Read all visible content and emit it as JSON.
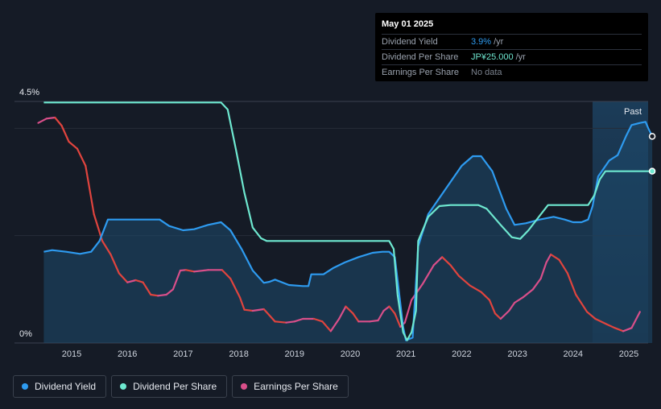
{
  "tooltip": {
    "date": "May 01 2025",
    "rows": [
      {
        "label": "Dividend Yield",
        "value": "3.9%",
        "unit": "/yr"
      },
      {
        "label": "Dividend Per Share",
        "value": "JP¥25.000",
        "unit": "/yr"
      },
      {
        "label": "Earnings Per Share",
        "value": "No data",
        "unit": ""
      }
    ]
  },
  "legend": [
    {
      "label": "Dividend Yield",
      "color": "#2e9bf0"
    },
    {
      "label": "Dividend Per Share",
      "color": "#6ee8d0"
    },
    {
      "label": "Earnings Per Share",
      "color": "#d94f8a"
    }
  ],
  "chart_data": {
    "type": "line",
    "y_ticks": [
      "4.5%",
      "0%"
    ],
    "ylim": [
      0,
      4.5
    ],
    "x_ticks": [
      "2015",
      "2016",
      "2017",
      "2018",
      "2019",
      "2020",
      "2021",
      "2022",
      "2023",
      "2024",
      "2025"
    ],
    "past_label": "Past",
    "colors": {
      "yield": "#2e9bf0",
      "dps": "#6ee8d0",
      "eps_up": "#d94f8a",
      "eps_down": "#e0443e"
    },
    "series": [
      {
        "name": "Dividend Yield",
        "key": "yield",
        "points": [
          [
            2014.5,
            1.7
          ],
          [
            2014.65,
            1.73
          ],
          [
            2014.9,
            1.7
          ],
          [
            2015.15,
            1.66
          ],
          [
            2015.35,
            1.7
          ],
          [
            2015.5,
            1.9
          ],
          [
            2015.65,
            2.3
          ],
          [
            2016.0,
            2.3
          ],
          [
            2016.3,
            2.3
          ],
          [
            2016.58,
            2.3
          ],
          [
            2016.75,
            2.18
          ],
          [
            2017.0,
            2.1
          ],
          [
            2017.2,
            2.12
          ],
          [
            2017.45,
            2.2
          ],
          [
            2017.68,
            2.25
          ],
          [
            2017.85,
            2.1
          ],
          [
            2018.05,
            1.75
          ],
          [
            2018.25,
            1.35
          ],
          [
            2018.45,
            1.12
          ],
          [
            2018.55,
            1.14
          ],
          [
            2018.65,
            1.18
          ],
          [
            2018.9,
            1.08
          ],
          [
            2019.15,
            1.06
          ],
          [
            2019.25,
            1.06
          ],
          [
            2019.3,
            1.28
          ],
          [
            2019.52,
            1.28
          ],
          [
            2019.7,
            1.4
          ],
          [
            2019.9,
            1.5
          ],
          [
            2020.15,
            1.6
          ],
          [
            2020.4,
            1.68
          ],
          [
            2020.58,
            1.7
          ],
          [
            2020.7,
            1.7
          ],
          [
            2020.8,
            1.6
          ],
          [
            2020.95,
            0.3
          ],
          [
            2021.0,
            0.05
          ],
          [
            2021.12,
            0.1
          ],
          [
            2021.22,
            1.8
          ],
          [
            2021.4,
            2.4
          ],
          [
            2021.7,
            2.85
          ],
          [
            2022.0,
            3.3
          ],
          [
            2022.2,
            3.48
          ],
          [
            2022.35,
            3.48
          ],
          [
            2022.55,
            3.2
          ],
          [
            2022.8,
            2.5
          ],
          [
            2022.95,
            2.2
          ],
          [
            2023.15,
            2.23
          ],
          [
            2023.4,
            2.3
          ],
          [
            2023.65,
            2.35
          ],
          [
            2023.85,
            2.3
          ],
          [
            2024.0,
            2.25
          ],
          [
            2024.15,
            2.25
          ],
          [
            2024.27,
            2.3
          ],
          [
            2024.35,
            2.55
          ],
          [
            2024.45,
            3.1
          ],
          [
            2024.65,
            3.4
          ],
          [
            2024.8,
            3.5
          ],
          [
            2024.95,
            3.85
          ],
          [
            2025.05,
            4.06
          ],
          [
            2025.2,
            4.1
          ],
          [
            2025.3,
            4.12
          ],
          [
            2025.35,
            4.0
          ],
          [
            2025.42,
            3.85
          ]
        ]
      },
      {
        "name": "Dividend Per Share",
        "key": "dps",
        "points": [
          [
            2014.5,
            4.48
          ],
          [
            2017.68,
            4.48
          ],
          [
            2017.8,
            4.35
          ],
          [
            2017.95,
            3.6
          ],
          [
            2018.1,
            2.8
          ],
          [
            2018.25,
            2.15
          ],
          [
            2018.4,
            1.95
          ],
          [
            2018.5,
            1.9
          ],
          [
            2020.58,
            1.9
          ],
          [
            2020.7,
            1.9
          ],
          [
            2020.78,
            1.75
          ],
          [
            2020.85,
            0.9
          ],
          [
            2020.95,
            0.2
          ],
          [
            2021.02,
            0.05
          ],
          [
            2021.1,
            0.2
          ],
          [
            2021.18,
            0.6
          ],
          [
            2021.22,
            1.9
          ],
          [
            2021.4,
            2.35
          ],
          [
            2021.6,
            2.55
          ],
          [
            2021.8,
            2.57
          ],
          [
            2022.3,
            2.57
          ],
          [
            2022.45,
            2.5
          ],
          [
            2022.7,
            2.2
          ],
          [
            2022.9,
            1.97
          ],
          [
            2023.05,
            1.94
          ],
          [
            2023.2,
            2.1
          ],
          [
            2023.4,
            2.37
          ],
          [
            2023.55,
            2.57
          ],
          [
            2024.27,
            2.57
          ],
          [
            2024.38,
            2.75
          ],
          [
            2024.48,
            3.05
          ],
          [
            2024.58,
            3.2
          ],
          [
            2025.42,
            3.2
          ]
        ]
      },
      {
        "name": "Earnings Per Share",
        "key": "eps",
        "points": [
          [
            2014.4,
            4.1
          ],
          [
            2014.55,
            4.18
          ],
          [
            2014.7,
            4.2
          ],
          [
            2014.82,
            4.05
          ],
          [
            2014.95,
            3.75
          ],
          [
            2015.1,
            3.62
          ],
          [
            2015.25,
            3.3
          ],
          [
            2015.4,
            2.4
          ],
          [
            2015.55,
            1.9
          ],
          [
            2015.7,
            1.65
          ],
          [
            2015.85,
            1.3
          ],
          [
            2016.0,
            1.13
          ],
          [
            2016.15,
            1.17
          ],
          [
            2016.28,
            1.13
          ],
          [
            2016.42,
            0.9
          ],
          [
            2016.55,
            0.88
          ],
          [
            2016.7,
            0.9
          ],
          [
            2016.82,
            1.0
          ],
          [
            2016.95,
            1.35
          ],
          [
            2017.05,
            1.36
          ],
          [
            2017.2,
            1.33
          ],
          [
            2017.45,
            1.36
          ],
          [
            2017.7,
            1.36
          ],
          [
            2017.85,
            1.2
          ],
          [
            2018.02,
            0.85
          ],
          [
            2018.1,
            0.62
          ],
          [
            2018.25,
            0.6
          ],
          [
            2018.45,
            0.63
          ],
          [
            2018.65,
            0.4
          ],
          [
            2018.85,
            0.38
          ],
          [
            2019.0,
            0.4
          ],
          [
            2019.15,
            0.45
          ],
          [
            2019.35,
            0.45
          ],
          [
            2019.5,
            0.4
          ],
          [
            2019.65,
            0.22
          ],
          [
            2019.8,
            0.45
          ],
          [
            2019.92,
            0.68
          ],
          [
            2020.05,
            0.55
          ],
          [
            2020.15,
            0.4
          ],
          [
            2020.35,
            0.4
          ],
          [
            2020.5,
            0.42
          ],
          [
            2020.6,
            0.6
          ],
          [
            2020.7,
            0.68
          ],
          [
            2020.8,
            0.55
          ],
          [
            2020.9,
            0.3
          ],
          [
            2020.98,
            0.38
          ],
          [
            2021.1,
            0.8
          ],
          [
            2021.3,
            1.1
          ],
          [
            2021.5,
            1.45
          ],
          [
            2021.65,
            1.6
          ],
          [
            2021.8,
            1.45
          ],
          [
            2021.95,
            1.25
          ],
          [
            2022.15,
            1.07
          ],
          [
            2022.35,
            0.95
          ],
          [
            2022.5,
            0.8
          ],
          [
            2022.6,
            0.55
          ],
          [
            2022.7,
            0.45
          ],
          [
            2022.85,
            0.6
          ],
          [
            2022.95,
            0.75
          ],
          [
            2023.1,
            0.85
          ],
          [
            2023.28,
            1.0
          ],
          [
            2023.42,
            1.2
          ],
          [
            2023.52,
            1.5
          ],
          [
            2023.6,
            1.65
          ],
          [
            2023.75,
            1.55
          ],
          [
            2023.9,
            1.3
          ],
          [
            2024.05,
            0.9
          ],
          [
            2024.25,
            0.58
          ],
          [
            2024.4,
            0.45
          ],
          [
            2024.6,
            0.35
          ],
          [
            2024.75,
            0.28
          ],
          [
            2024.9,
            0.22
          ],
          [
            2025.05,
            0.28
          ],
          [
            2025.2,
            0.58
          ]
        ]
      }
    ]
  }
}
